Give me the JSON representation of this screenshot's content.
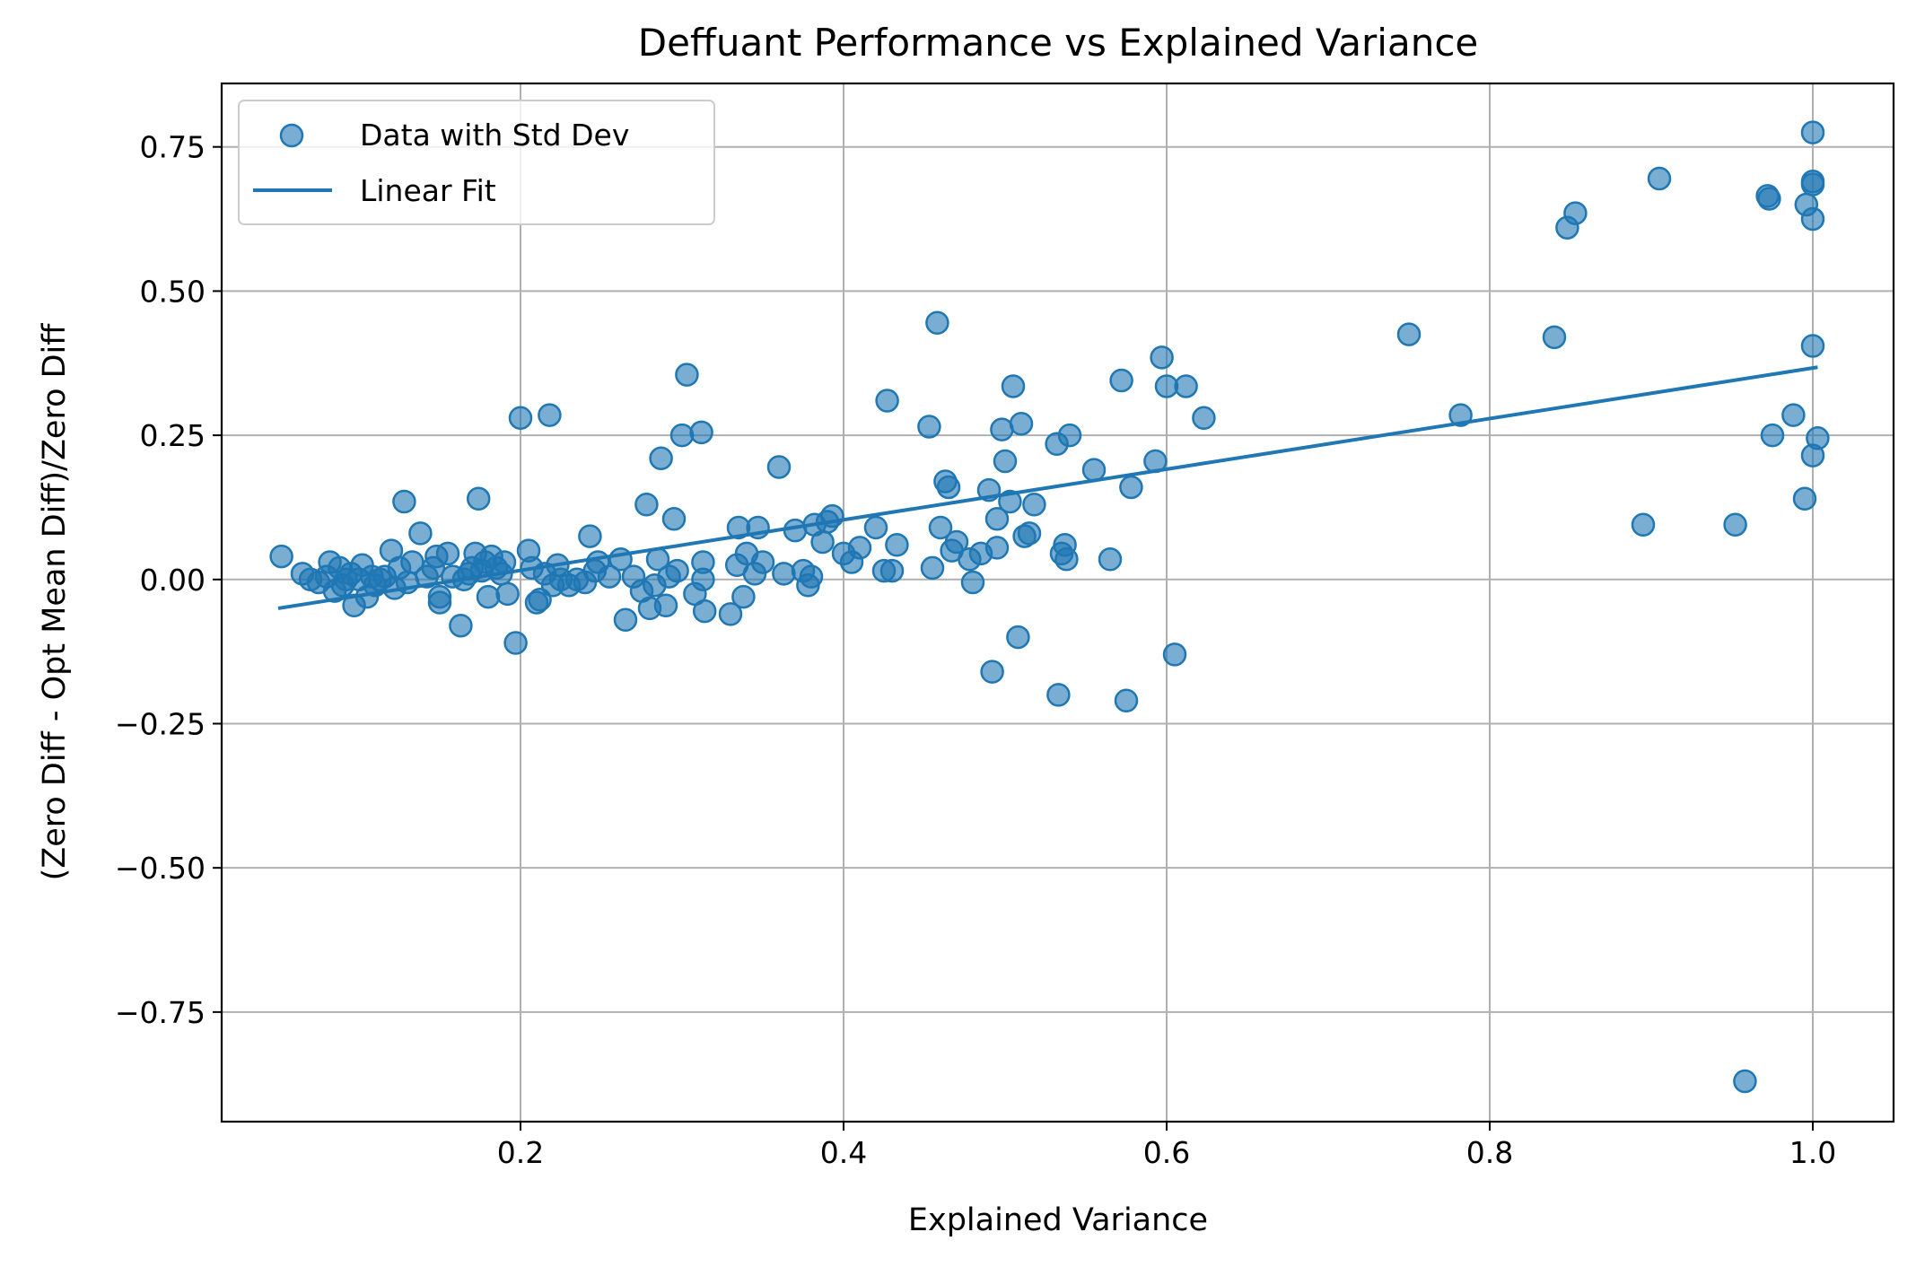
{
  "chart_data": {
    "type": "scatter",
    "title": "Deffuant Performance vs Explained Variance",
    "xlabel": "Explained Variance",
    "ylabel": "(Zero Diff - Opt Mean Diff)/Zero Diff",
    "xlim": [
      0.015,
      1.05
    ],
    "ylim": [
      -0.94,
      0.86
    ],
    "x_ticks": [
      0.2,
      0.4,
      0.6,
      0.8,
      1.0
    ],
    "x_tick_labels": [
      "0.2",
      "0.4",
      "0.6",
      "0.8",
      "1.0"
    ],
    "y_ticks": [
      0.75,
      0.5,
      0.25,
      0.0,
      -0.25,
      -0.5,
      -0.75
    ],
    "y_tick_labels": [
      "0.75",
      "0.50",
      "0.25",
      "0.00",
      "−0.25",
      "−0.50",
      "−0.75"
    ],
    "grid": true,
    "legend_position": "top-left",
    "colors": {
      "series": "#1f77b4",
      "grid": "#b0b0b0"
    },
    "series": [
      {
        "name": "Data with Std Dev",
        "kind": "scatter",
        "points": [
          [
            0.052,
            0.04
          ],
          [
            0.065,
            0.01
          ],
          [
            0.07,
            0.0
          ],
          [
            0.075,
            -0.005
          ],
          [
            0.08,
            0.005
          ],
          [
            0.082,
            0.03
          ],
          [
            0.085,
            -0.02
          ],
          [
            0.088,
            0.02
          ],
          [
            0.09,
            -0.01
          ],
          [
            0.092,
            0.0
          ],
          [
            0.095,
            0.01
          ],
          [
            0.097,
            -0.045
          ],
          [
            0.1,
            0.0
          ],
          [
            0.102,
            0.025
          ],
          [
            0.105,
            -0.03
          ],
          [
            0.108,
            0.005
          ],
          [
            0.11,
            -0.01
          ],
          [
            0.113,
            0.0
          ],
          [
            0.116,
            0.005
          ],
          [
            0.12,
            0.05
          ],
          [
            0.122,
            -0.015
          ],
          [
            0.125,
            0.02
          ],
          [
            0.128,
            0.135
          ],
          [
            0.13,
            -0.005
          ],
          [
            0.133,
            0.03
          ],
          [
            0.138,
            0.08
          ],
          [
            0.142,
            0.005
          ],
          [
            0.146,
            0.02
          ],
          [
            0.148,
            0.04
          ],
          [
            0.15,
            -0.04
          ],
          [
            0.15,
            -0.03
          ],
          [
            0.155,
            0.045
          ],
          [
            0.158,
            0.005
          ],
          [
            0.163,
            -0.08
          ],
          [
            0.165,
            0.0
          ],
          [
            0.168,
            0.01
          ],
          [
            0.17,
            0.02
          ],
          [
            0.172,
            0.045
          ],
          [
            0.174,
            0.14
          ],
          [
            0.176,
            0.015
          ],
          [
            0.178,
            0.03
          ],
          [
            0.18,
            -0.03
          ],
          [
            0.182,
            0.04
          ],
          [
            0.185,
            0.02
          ],
          [
            0.188,
            0.01
          ],
          [
            0.19,
            0.03
          ],
          [
            0.192,
            -0.025
          ],
          [
            0.197,
            -0.11
          ],
          [
            0.2,
            0.28
          ],
          [
            0.205,
            0.05
          ],
          [
            0.207,
            0.02
          ],
          [
            0.21,
            -0.04
          ],
          [
            0.212,
            -0.035
          ],
          [
            0.215,
            0.01
          ],
          [
            0.218,
            0.285
          ],
          [
            0.22,
            -0.01
          ],
          [
            0.223,
            0.025
          ],
          [
            0.225,
            0.0
          ],
          [
            0.23,
            -0.01
          ],
          [
            0.235,
            0.0
          ],
          [
            0.24,
            -0.005
          ],
          [
            0.243,
            0.075
          ],
          [
            0.246,
            0.015
          ],
          [
            0.248,
            0.03
          ],
          [
            0.255,
            0.005
          ],
          [
            0.262,
            0.035
          ],
          [
            0.265,
            -0.07
          ],
          [
            0.27,
            0.005
          ],
          [
            0.275,
            -0.02
          ],
          [
            0.278,
            0.13
          ],
          [
            0.28,
            -0.05
          ],
          [
            0.283,
            -0.01
          ],
          [
            0.285,
            0.035
          ],
          [
            0.287,
            0.21
          ],
          [
            0.29,
            -0.045
          ],
          [
            0.292,
            0.005
          ],
          [
            0.295,
            0.105
          ],
          [
            0.297,
            0.015
          ],
          [
            0.3,
            0.25
          ],
          [
            0.303,
            0.355
          ],
          [
            0.308,
            -0.025
          ],
          [
            0.312,
            0.255
          ],
          [
            0.313,
            0.0
          ],
          [
            0.313,
            0.03
          ],
          [
            0.314,
            -0.055
          ],
          [
            0.33,
            -0.06
          ],
          [
            0.334,
            0.025
          ],
          [
            0.335,
            0.09
          ],
          [
            0.338,
            -0.03
          ],
          [
            0.34,
            0.045
          ],
          [
            0.345,
            0.01
          ],
          [
            0.347,
            0.09
          ],
          [
            0.35,
            0.03
          ],
          [
            0.36,
            0.195
          ],
          [
            0.363,
            0.01
          ],
          [
            0.37,
            0.085
          ],
          [
            0.375,
            0.015
          ],
          [
            0.378,
            -0.01
          ],
          [
            0.38,
            0.005
          ],
          [
            0.382,
            0.095
          ],
          [
            0.387,
            0.065
          ],
          [
            0.39,
            0.1
          ],
          [
            0.393,
            0.11
          ],
          [
            0.4,
            0.045
          ],
          [
            0.405,
            0.03
          ],
          [
            0.41,
            0.055
          ],
          [
            0.42,
            0.09
          ],
          [
            0.425,
            0.015
          ],
          [
            0.427,
            0.31
          ],
          [
            0.43,
            0.015
          ],
          [
            0.433,
            0.06
          ],
          [
            0.453,
            0.265
          ],
          [
            0.455,
            0.02
          ],
          [
            0.458,
            0.445
          ],
          [
            0.46,
            0.09
          ],
          [
            0.463,
            0.17
          ],
          [
            0.465,
            0.16
          ],
          [
            0.467,
            0.05
          ],
          [
            0.47,
            0.065
          ],
          [
            0.478,
            0.035
          ],
          [
            0.48,
            -0.005
          ],
          [
            0.485,
            0.045
          ],
          [
            0.49,
            0.155
          ],
          [
            0.492,
            -0.16
          ],
          [
            0.495,
            0.105
          ],
          [
            0.495,
            0.055
          ],
          [
            0.498,
            0.26
          ],
          [
            0.5,
            0.205
          ],
          [
            0.503,
            0.135
          ],
          [
            0.505,
            0.335
          ],
          [
            0.508,
            -0.1
          ],
          [
            0.51,
            0.27
          ],
          [
            0.512,
            0.075
          ],
          [
            0.515,
            0.08
          ],
          [
            0.518,
            0.13
          ],
          [
            0.532,
            0.235
          ],
          [
            0.533,
            -0.2
          ],
          [
            0.535,
            0.045
          ],
          [
            0.537,
            0.06
          ],
          [
            0.538,
            0.035
          ],
          [
            0.54,
            0.25
          ],
          [
            0.555,
            0.19
          ],
          [
            0.565,
            0.035
          ],
          [
            0.572,
            0.345
          ],
          [
            0.575,
            -0.21
          ],
          [
            0.578,
            0.16
          ],
          [
            0.593,
            0.205
          ],
          [
            0.597,
            0.385
          ],
          [
            0.6,
            0.335
          ],
          [
            0.605,
            -0.13
          ],
          [
            0.612,
            0.335
          ],
          [
            0.623,
            0.28
          ],
          [
            0.75,
            0.425
          ],
          [
            0.782,
            0.285
          ],
          [
            0.84,
            0.42
          ],
          [
            0.848,
            0.61
          ],
          [
            0.853,
            0.635
          ],
          [
            0.895,
            0.095
          ],
          [
            0.905,
            0.695
          ],
          [
            0.952,
            0.095
          ],
          [
            0.958,
            -0.87
          ],
          [
            0.972,
            0.665
          ],
          [
            0.973,
            0.66
          ],
          [
            0.975,
            0.25
          ],
          [
            0.988,
            0.285
          ],
          [
            0.995,
            0.14
          ],
          [
            0.996,
            0.65
          ],
          [
            1.0,
            0.775
          ],
          [
            1.0,
            0.69
          ],
          [
            1.0,
            0.685
          ],
          [
            1.0,
            0.625
          ],
          [
            1.0,
            0.405
          ],
          [
            1.0,
            0.215
          ],
          [
            1.003,
            0.245
          ]
        ]
      },
      {
        "name": "Linear Fit",
        "kind": "line",
        "x": [
          0.05,
          1.003
        ],
        "y": [
          -0.05,
          0.368
        ]
      }
    ]
  }
}
